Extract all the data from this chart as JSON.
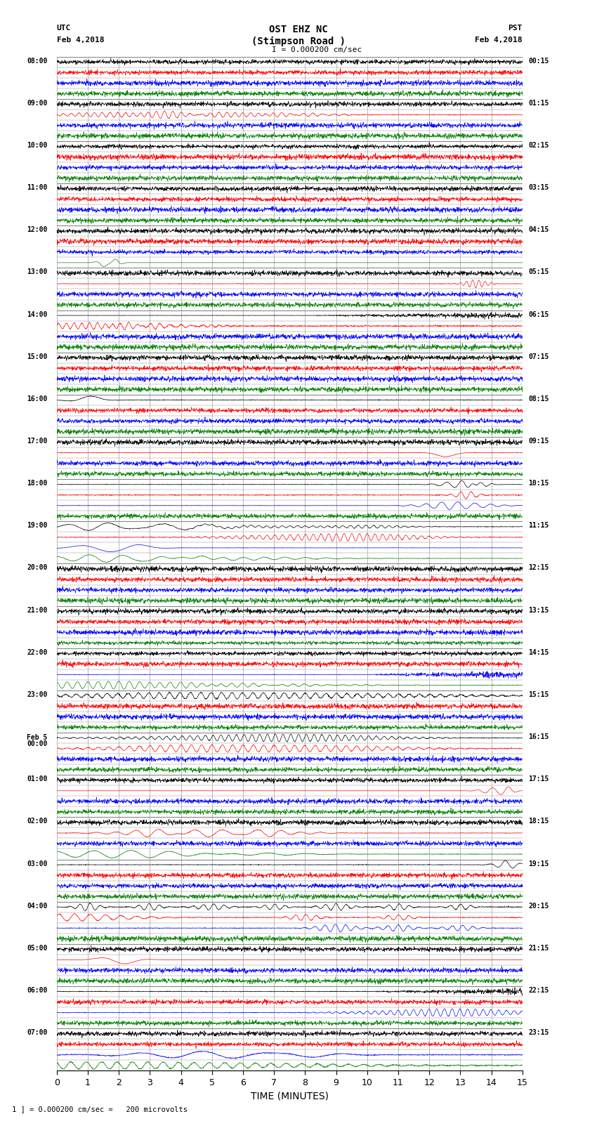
{
  "title_line1": "OST EHZ NC",
  "title_line2": "(Stimpson Road )",
  "title_line3": "I = 0.000200 cm/sec",
  "left_label_top": "UTC",
  "left_label_date": "Feb 4,2018",
  "right_label_top": "PST",
  "right_label_date": "Feb 4,2018",
  "xlabel": "TIME (MINUTES)",
  "bottom_label": "1 ] = 0.000200 cm/sec =   200 microvolts",
  "xlim": [
    0,
    15
  ],
  "xticks": [
    0,
    1,
    2,
    3,
    4,
    5,
    6,
    7,
    8,
    9,
    10,
    11,
    12,
    13,
    14,
    15
  ],
  "num_hours": 24,
  "traces_per_hour": 4,
  "background_color": "#ffffff",
  "grid_color": "#888888",
  "colors": [
    "black",
    "red",
    "blue",
    "green"
  ],
  "utc_labels": [
    "08:00",
    "09:00",
    "10:00",
    "11:00",
    "12:00",
    "13:00",
    "14:00",
    "15:00",
    "16:00",
    "17:00",
    "18:00",
    "19:00",
    "20:00",
    "21:00",
    "22:00",
    "23:00",
    "Feb 5\n00:00",
    "01:00",
    "02:00",
    "03:00",
    "04:00",
    "05:00",
    "06:00",
    "07:00"
  ],
  "pst_labels": [
    "00:15",
    "01:15",
    "02:15",
    "03:15",
    "04:15",
    "05:15",
    "06:15",
    "07:15",
    "08:15",
    "09:15",
    "10:15",
    "11:15",
    "12:15",
    "13:15",
    "14:15",
    "15:15",
    "16:15",
    "17:15",
    "18:15",
    "19:15",
    "20:15",
    "21:15",
    "22:15",
    "23:15"
  ],
  "seed": 42,
  "fig_width": 8.5,
  "fig_height": 16.13,
  "dpi": 100
}
